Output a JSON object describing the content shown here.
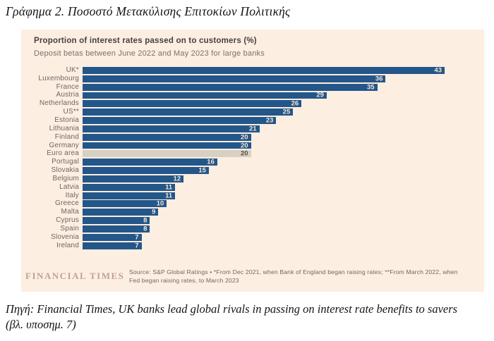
{
  "page": {
    "figure_title": "Γράφημα 2. Ποσοστό Μετακύλισης Επιτοκίων Πολιτικής",
    "caption_line1": "Πηγή: Financial Times, UK banks lead global rivals in passing on interest rate benefits to savers",
    "caption_line2": "(βλ. υποσημ. 7)"
  },
  "chart_data": {
    "type": "bar",
    "orientation": "horizontal",
    "title": "Proportion of interest rates passed on to customers (%)",
    "subtitle": "Deposit betas between June 2022 and May 2023 for large banks",
    "categories": [
      "UK*",
      "Luxembourg",
      "France",
      "Austria",
      "Netherlands",
      "US**",
      "Estonia",
      "Lithuania",
      "Finland",
      "Germany",
      "Euro area",
      "Portugal",
      "Slovakia",
      "Belgium",
      "Latvia",
      "Italy",
      "Greece",
      "Malta",
      "Cyprus",
      "Spain",
      "Slovenia",
      "Ireland"
    ],
    "values": [
      43,
      36,
      35,
      29,
      26,
      25,
      23,
      21,
      20,
      20,
      20,
      16,
      15,
      12,
      11,
      11,
      10,
      9,
      8,
      8,
      7,
      7
    ],
    "highlight_category": "Euro area",
    "xlim": [
      0,
      43
    ],
    "grid": false,
    "legend": false,
    "value_labels": "inside-bar-end",
    "colors": {
      "panel_background": "#fdeee2",
      "bar": "#235689",
      "highlight_bar": "#d8d0c2",
      "value_label": "#f4e6d5",
      "highlight_value_label": "#55504a",
      "category_label": "#6e6760"
    },
    "brand": "FINANCIAL TIMES",
    "source": "Source: S&P Global Ratings • *From Dec 2021, when Bank of England began raising rates; **From March 2022, when Fed began raising rates, to March 2023"
  }
}
